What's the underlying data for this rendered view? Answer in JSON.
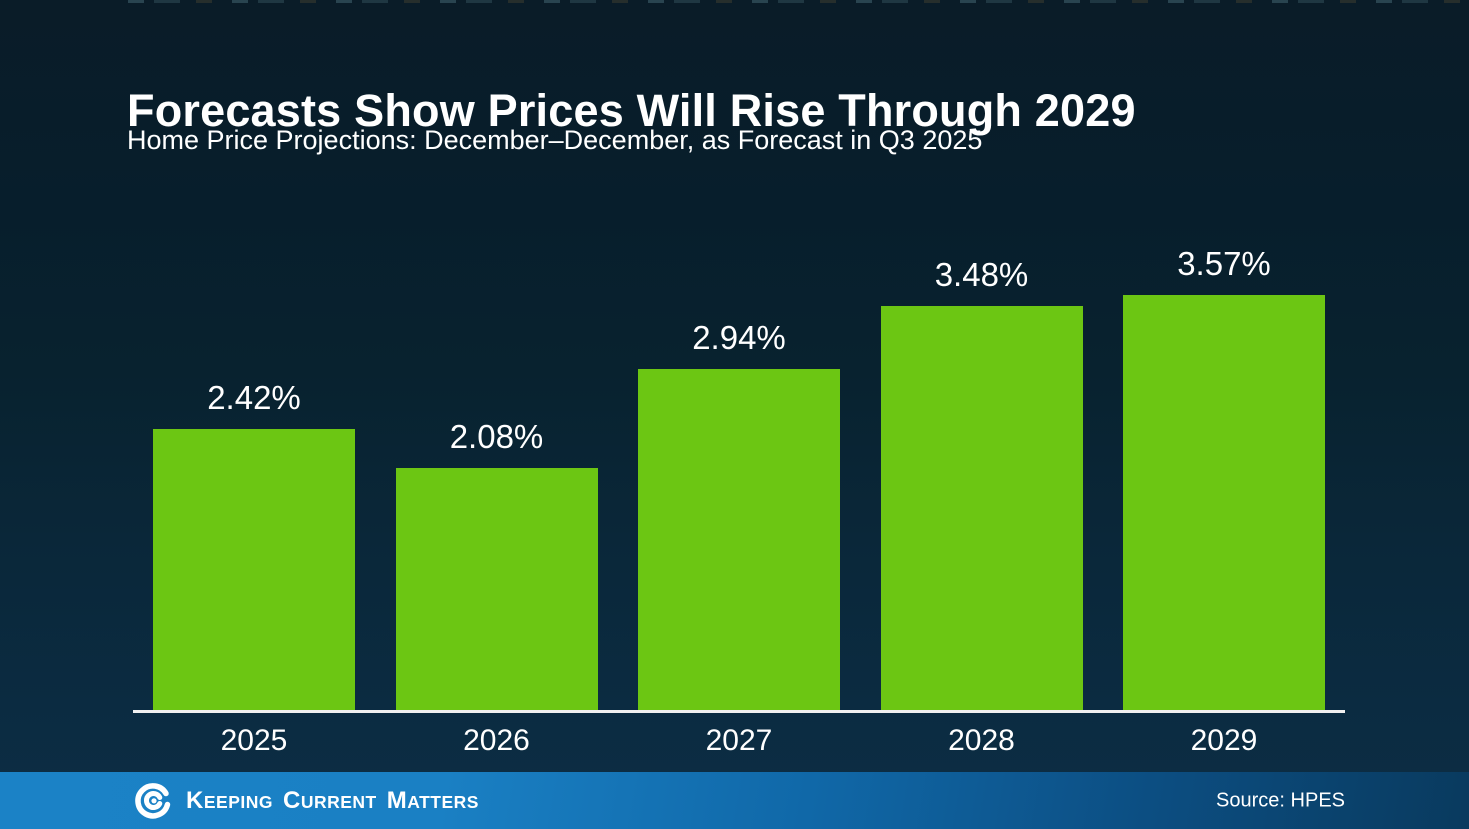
{
  "chart_data": {
    "type": "bar",
    "title": "Forecasts Show Prices Will Rise Through 2029",
    "subtitle": "Home Price Projections: December–December, as Forecast in Q3 2025",
    "categories": [
      "2025",
      "2026",
      "2027",
      "2028",
      "2029"
    ],
    "values": [
      2.42,
      2.08,
      2.94,
      3.48,
      3.57
    ],
    "value_labels": [
      "2.42%",
      "2.08%",
      "2.94%",
      "3.48%",
      "3.57%"
    ],
    "xlabel": "",
    "ylabel": "",
    "ylim": [
      0,
      4.15
    ],
    "grid": false,
    "legend": false,
    "bar_color": "#6cc613",
    "axis_line_color": "#f0f0f0",
    "label_color": "#ffffff"
  },
  "footer": {
    "brand": {
      "icon": "kcm-swirl-logo-icon",
      "words": [
        {
          "initial": "K",
          "rest": "EEPING"
        },
        {
          "initial": "C",
          "rest": "URRENT"
        },
        {
          "initial": "M",
          "rest": "ATTERS"
        }
      ]
    },
    "source_label": "Source: HPES",
    "bar_color_left": "#1b82c6",
    "bar_color_right": "#093a5e"
  },
  "colors": {
    "background_top": "#0a1c28",
    "background_bottom": "#0c2e45",
    "text": "#ffffff"
  }
}
